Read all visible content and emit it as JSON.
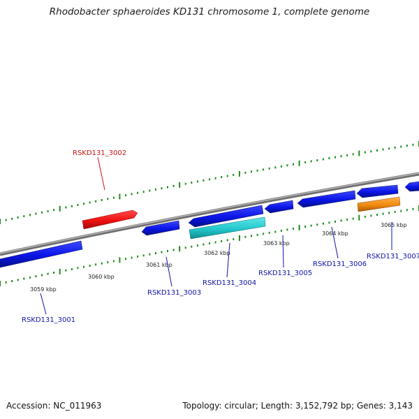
{
  "title": "Rhodobacter sphaeroides KD131 chromosome 1, complete genome",
  "footer": {
    "accession": "Accession: NC_011963",
    "summary": "Topology: circular; Length: 3,152,792 bp; Genes: 3,143"
  },
  "scale_labels": [
    "3059 kbp",
    "3060 kbp",
    "3061 kbp",
    "3062 kbp",
    "3063 kbp",
    "3064 kbp",
    "3065 kbp"
  ],
  "genes": [
    {
      "id": "RSKD131_3001",
      "strand": "reverse",
      "color": "#0a14e6"
    },
    {
      "id": "RSKD131_3002",
      "strand": "forward",
      "color": "#ee1111"
    },
    {
      "id": "RSKD131_3003",
      "strand": "reverse",
      "color": "#0a14e6"
    },
    {
      "id": "RSKD131_3004",
      "strand": "reverse",
      "color": "#0a14e6"
    },
    {
      "id": "RSKD131_3005",
      "strand": "reverse",
      "color": "#0a14e6"
    },
    {
      "id": "RSKD131_3006",
      "strand": "reverse",
      "color": "#0a14e6"
    },
    {
      "id": "RSKD131_3007",
      "strand": "reverse",
      "color": "#0a14e6"
    }
  ],
  "extra_features": [
    {
      "strand": "reverse",
      "color": "#22c8cc"
    },
    {
      "strand": "reverse",
      "color": "#f08a10"
    }
  ],
  "colors": {
    "backbone": "#8a8a8a",
    "ticks": "#1f8a1f",
    "forward_label": "#cc1111",
    "reverse_label": "#1111aa"
  }
}
